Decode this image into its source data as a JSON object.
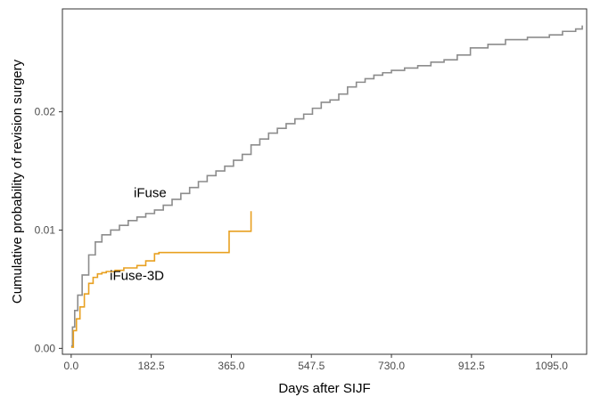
{
  "chart_data": {
    "type": "line",
    "step": true,
    "xlabel": "Days after SIJF",
    "ylabel": "Cumulative probability of revision surgery",
    "xlim": [
      -20,
      1175
    ],
    "ylim": [
      -0.0005,
      0.0287
    ],
    "x_ticks": [
      0,
      182.5,
      365,
      547.5,
      730,
      912.5,
      1095
    ],
    "x_tick_labels": [
      "0.0",
      "182.5",
      "365.0",
      "547.5",
      "730.0",
      "912.5",
      "1095.0"
    ],
    "y_ticks": [
      0,
      0.01,
      0.02
    ],
    "y_tick_labels": [
      "0.00",
      "0.01",
      "0.02"
    ],
    "grid": false,
    "series": [
      {
        "name": "iFuse",
        "color": "#8c8c8c",
        "x": [
          0,
          3,
          8,
          15,
          25,
          40,
          55,
          70,
          90,
          110,
          130,
          150,
          170,
          190,
          210,
          230,
          250,
          270,
          290,
          310,
          330,
          350,
          370,
          390,
          410,
          430,
          450,
          470,
          490,
          510,
          530,
          550,
          570,
          590,
          610,
          630,
          650,
          670,
          690,
          710,
          730,
          760,
          790,
          820,
          850,
          880,
          910,
          950,
          990,
          1040,
          1090,
          1120,
          1150,
          1165
        ],
        "values": [
          0.0002,
          0.0018,
          0.0032,
          0.0045,
          0.0062,
          0.0079,
          0.009,
          0.0096,
          0.01,
          0.0104,
          0.0108,
          0.0111,
          0.0114,
          0.0117,
          0.0121,
          0.0126,
          0.0131,
          0.0136,
          0.0141,
          0.0146,
          0.015,
          0.0154,
          0.0159,
          0.0164,
          0.0172,
          0.0177,
          0.0182,
          0.0186,
          0.019,
          0.0194,
          0.0198,
          0.0203,
          0.0208,
          0.021,
          0.0215,
          0.0221,
          0.0225,
          0.0228,
          0.0231,
          0.0233,
          0.0235,
          0.0237,
          0.0239,
          0.0242,
          0.0244,
          0.0248,
          0.0254,
          0.0257,
          0.0261,
          0.0263,
          0.0265,
          0.0268,
          0.027,
          0.0273
        ]
      },
      {
        "name": "iFuse-3D",
        "color": "#e8a020",
        "x": [
          0,
          5,
          12,
          20,
          30,
          40,
          50,
          60,
          70,
          80,
          100,
          120,
          150,
          170,
          190,
          200,
          340,
          360,
          405,
          410
        ],
        "values": [
          0.0001,
          0.0015,
          0.0025,
          0.0035,
          0.0046,
          0.0055,
          0.006,
          0.0063,
          0.0064,
          0.0065,
          0.0066,
          0.0068,
          0.007,
          0.0074,
          0.008,
          0.0081,
          0.0081,
          0.0099,
          0.0099,
          0.0116
        ]
      }
    ],
    "annotations": [
      {
        "text": "iFuse",
        "x": 180,
        "y": 0.0128
      },
      {
        "text": "iFuse-3D",
        "x": 150,
        "y": 0.0058
      }
    ]
  }
}
